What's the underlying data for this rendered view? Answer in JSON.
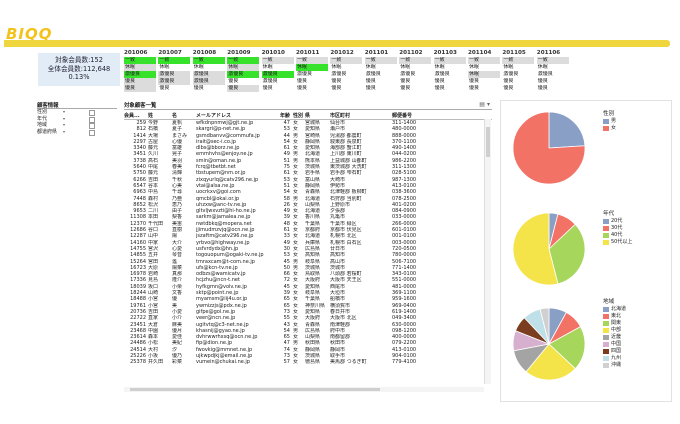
{
  "app": {
    "logo": "BIQQ"
  },
  "summary": {
    "line1": "対象会員数:152",
    "line2": "全体会員数:112,648",
    "line3": "0.13%"
  },
  "periods": [
    {
      "label": "201006",
      "cells": [
        [
          "一致",
          "green"
        ],
        [
          "休眠",
          "lgray"
        ],
        [
          "激優良",
          "green"
        ],
        [
          "優良",
          "lgray"
        ],
        [
          "優良",
          "lgray"
        ]
      ]
    },
    {
      "label": "201007",
      "cells": [
        [
          "一致",
          "green"
        ],
        [
          "休眠",
          "white"
        ],
        [
          "激優良",
          "lgray"
        ],
        [
          "激優良",
          "lgray"
        ],
        [
          "優良",
          "white"
        ]
      ]
    },
    {
      "label": "201008",
      "cells": [
        [
          "一致",
          "green"
        ],
        [
          "休眠",
          "white"
        ],
        [
          "激優良",
          "lgray"
        ],
        [
          "激優良",
          "lgray"
        ],
        [
          "優良",
          "white"
        ]
      ]
    },
    {
      "label": "201009",
      "cells": [
        [
          "一致",
          "green"
        ],
        [
          "休眠",
          "lgray"
        ],
        [
          "激優良",
          "green"
        ],
        [
          "優良",
          "white"
        ],
        [
          "優良",
          "lgray"
        ]
      ]
    },
    {
      "label": "201010",
      "cells": [
        [
          "一致",
          "lgray"
        ],
        [
          "休眠",
          "white"
        ],
        [
          "激優良",
          "green"
        ],
        [
          "激優良",
          "white"
        ],
        [
          "優良",
          "white"
        ]
      ]
    },
    {
      "label": "201011",
      "cells": [
        [
          "一致",
          "lgray"
        ],
        [
          "休眠",
          "green"
        ],
        [
          "激優良",
          "white"
        ],
        [
          "優良",
          "white"
        ],
        [
          "優良",
          "white"
        ]
      ]
    },
    {
      "label": "201012",
      "cells": [
        [
          "一致",
          "lgray"
        ],
        [
          "休眠",
          "white"
        ],
        [
          "激優良",
          "white"
        ],
        [
          "優良",
          "white"
        ],
        [
          "優良",
          "white"
        ]
      ]
    },
    {
      "label": "201101",
      "cells": [
        [
          "一致",
          "lgray"
        ],
        [
          "休眠",
          "white"
        ],
        [
          "激優良",
          "white"
        ],
        [
          "優良",
          "white"
        ],
        [
          "優良",
          "white"
        ]
      ]
    },
    {
      "label": "201102",
      "cells": [
        [
          "一致",
          "lgray"
        ],
        [
          "休眠",
          "white"
        ],
        [
          "激優良",
          "white"
        ],
        [
          "優良",
          "white"
        ],
        [
          "優良",
          "white"
        ]
      ]
    },
    {
      "label": "201103",
      "cells": [
        [
          "一致",
          "lgray"
        ],
        [
          "休眠",
          "white"
        ],
        [
          "激優良",
          "white"
        ],
        [
          "優良",
          "white"
        ],
        [
          "優良",
          "white"
        ]
      ]
    },
    {
      "label": "201104",
      "cells": [
        [
          "一致",
          "lgray"
        ],
        [
          "休眠",
          "white"
        ],
        [
          "休眠",
          "lgray"
        ],
        [
          "優良",
          "white"
        ],
        [
          "優良",
          "white"
        ]
      ]
    },
    {
      "label": "201105",
      "cells": [
        [
          "一致",
          "lgray"
        ],
        [
          "休眠",
          "white"
        ],
        [
          "激優良",
          "white"
        ],
        [
          "優良",
          "white"
        ],
        [
          "優良",
          "white"
        ]
      ]
    },
    {
      "label": "201106",
      "cells": [
        [
          "一致",
          "lgray"
        ],
        [
          "休眠",
          "white"
        ],
        [
          "激優良",
          "white"
        ],
        [
          "優良",
          "white"
        ],
        [
          "優良",
          "white"
        ]
      ]
    }
  ],
  "filter": {
    "title": "顧客情報",
    "rows": [
      "性別",
      "年代",
      "地域",
      "都道府県"
    ]
  },
  "table": {
    "title": "対象顧客一覧",
    "headers": [
      "会員...",
      "姓",
      "名",
      "メールアドレス",
      "年齢",
      "性別",
      "県",
      "市区町村",
      "郵便番号"
    ],
    "rows": [
      [
        "259",
        "今野",
        "夏帆",
        "wfkdnpnmwj@gjt.ne.jp",
        "47",
        "女",
        "宮城県",
        "仙台市",
        "311-1400"
      ],
      [
        "812",
        "石橋",
        "夏子",
        "skargri@p-net.ne.jp",
        "53",
        "女",
        "愛知県",
        "瀬戸市",
        "480-0000"
      ],
      [
        "1414",
        "大場",
        "まさみ",
        "gsmdbanvv@commufa.jp",
        "44",
        "男",
        "宮崎県",
        "児湯郡 都農町",
        "888-0000"
      ],
      [
        "2297",
        "古屋",
        "心優",
        "irait@sec-i.co.jp",
        "54",
        "女",
        "静岡県",
        "駿東郡 長泉町",
        "370-1100"
      ],
      [
        "3340",
        "藤元",
        "富雄",
        "dlbs@bborz.ne.jp",
        "61",
        "女",
        "愛知県",
        "海部郡 蟹江町",
        "490-1400"
      ],
      [
        "3451",
        "久川",
        "晃子",
        "emmhvhs@enjoy.ne.jp",
        "49",
        "男",
        "北海道",
        "上川郡 東川町",
        "044-0200"
      ],
      [
        "3738",
        "高石",
        "美羽",
        "smin@oman.ne.jp",
        "51",
        "男",
        "熊本県",
        "上益城郡 山都町",
        "986-2200"
      ],
      [
        "5640",
        "中尾",
        "春美",
        "fcrq@tbetbt.net",
        "75",
        "女",
        "茨城県",
        "東茨城郡 大洗町",
        "311-1300"
      ],
      [
        "5750",
        "藤元",
        "清輝",
        "tbstupem@nm.or.jp",
        "61",
        "女",
        "岩手県",
        "岩手郡 雫石町",
        "028-5100"
      ],
      [
        "6266",
        "吉田",
        "千秋",
        "zixqyurlq@catv296.ne.jp",
        "53",
        "女",
        "富山県",
        "大崎市",
        "987-1300"
      ],
      [
        "6547",
        "谷本",
        "心美",
        "vtai@alsa.ne.jp",
        "51",
        "女",
        "静岡県",
        "伊勢市",
        "413-0100"
      ],
      [
        "6963",
        "中島",
        "千尋",
        "uocrkxv@goi.com",
        "54",
        "女",
        "青森県",
        "北津軽郡 板柳町",
        "038-3600"
      ],
      [
        "7448",
        "森村",
        "乃亜",
        "qmcbl@okai.or.jp",
        "58",
        "男",
        "北海道",
        "石狩郡 当別町",
        "078-2500"
      ],
      [
        "8652",
        "松沢",
        "恵乃",
        "uhzxw@anc-tv.ne.jp",
        "26",
        "女",
        "山梨県",
        "上野原市",
        "401-0200"
      ],
      [
        "9653",
        "二川",
        "由子",
        "gltvljwxvzti@hi-ho.ne.jp",
        "49",
        "女",
        "北海道",
        "夕張郡",
        "084-0900"
      ],
      [
        "11308",
        "本田",
        "梨香",
        "sarkm@jamalea.ne.jp",
        "39",
        "女",
        "香川県",
        "丸亀市",
        "033-0000"
      ],
      [
        "12370",
        "千代田",
        "美宙",
        "nwtdbkq@mopera.net",
        "48",
        "女",
        "千葉県",
        "千葉市 緑区",
        "266-0000"
      ],
      [
        "12686",
        "谷口",
        "直樹",
        "jjimudmzvjq@ocn.ne.jp",
        "61",
        "女",
        "京都府",
        "京都市 伏見区",
        "601-0100"
      ],
      [
        "12287",
        "山中",
        "陽",
        "jszaftm@catv296.ne.jp",
        "33",
        "女",
        "北海道",
        "札幌市 北区",
        "001-0100"
      ],
      [
        "14160",
        "中家",
        "大介",
        "yrbvo@highway.ne.jp",
        "49",
        "女",
        "兵庫県",
        "札幌市 白石区",
        "003-0000"
      ],
      [
        "14755",
        "宮沢",
        "心愛",
        "usfvrdydx@hn.jp",
        "30",
        "女",
        "広島県",
        "廿日市",
        "720-0500"
      ],
      [
        "14855",
        "五井",
        "琴音",
        "togouopum@ogaki-tv.ne.jp",
        "53",
        "女",
        "高知県",
        "高知市",
        "780-0000"
      ],
      [
        "15264",
        "宮田",
        "遙",
        "tmraxcam@t-com.ne.jp",
        "45",
        "男",
        "岐阜県",
        "高山市",
        "506-7100"
      ],
      [
        "16723",
        "大原",
        "陽菜",
        "ufs@kcn-tv.ne.jp",
        "50",
        "男",
        "茨城県",
        "茨城市",
        "771-1400"
      ],
      [
        "16978",
        "岩崎",
        "真那",
        "odbzs@wamicatv.jp",
        "66",
        "女",
        "鳥取県",
        "八頭郡 若桜町",
        "343-0100"
      ],
      [
        "17336",
        "見島",
        "隆介",
        "hcjzhu@ncn-t.net",
        "72",
        "女",
        "大阪府",
        "大阪市 天王区",
        "551-0000"
      ],
      [
        "18039",
        "坂口",
        "小栗",
        "hyfkgmn@volv.ne.jp",
        "45",
        "女",
        "愛知県",
        "西尾市",
        "481-0000"
      ],
      [
        "18244",
        "山崎",
        "文香",
        "sktp@point.ne.jp",
        "39",
        "女",
        "岐阜県",
        "大垣市",
        "369-1100"
      ],
      [
        "18488",
        "小宮",
        "優",
        "myamsm@iij4u.or.jp",
        "65",
        "女",
        "千葉県",
        "船橋市",
        "959-1600"
      ],
      [
        "19761",
        "小宮",
        "美",
        "ywmizzjs@pdx.ne.jp",
        "65",
        "女",
        "神奈川県",
        "横須賀市",
        "969-0400"
      ],
      [
        "20736",
        "吉田",
        "小愛",
        "gifpe@gol.ne.jp",
        "73",
        "女",
        "愛知県",
        "春日井市",
        "619-1400"
      ],
      [
        "22722",
        "直家",
        "小介",
        "veer@ncn.ne.jp",
        "55",
        "女",
        "大阪府",
        "大阪市 北区",
        "049-3400"
      ],
      [
        "23451",
        "大倉",
        "麻美",
        "ugitvtq@c3-net.ne.jp",
        "43",
        "女",
        "青森県",
        "南津軽郡",
        "630-0000"
      ],
      [
        "23468",
        "中園",
        "優月",
        "khasnij@gyao.ne.jp",
        "54",
        "男",
        "広島県",
        "府中市",
        "098-1200"
      ],
      [
        "23614",
        "森本",
        "愛佳",
        "dvhrwwrhxsq@ocn.ne.jp",
        "65",
        "女",
        "山梨県",
        "南都留郡",
        "400-0000"
      ],
      [
        "24486",
        "小松",
        "美紀",
        "fip@dion.ne.jp",
        "47",
        "男",
        "秋田県",
        "秋田市",
        "079-2200"
      ],
      [
        "24514",
        "大村",
        "汐",
        "fwovkig@mmnet.ne.jp",
        "74",
        "女",
        "静岡県",
        "静岡市",
        "413-0100"
      ],
      [
        "25226",
        "小坂",
        "優乃",
        "ujkwpdjkj@email.ne.jp",
        "73",
        "女",
        "茨城県",
        "取手市",
        "904-0100"
      ],
      [
        "25378",
        "井久田",
        "彩菜",
        "vumein@chukai.ne.jp",
        "57",
        "女",
        "徳島県",
        "美馬郡 つるぎ町",
        "779-4100"
      ]
    ]
  },
  "pies": [
    {
      "title": "性別",
      "slices": [
        {
          "label": "男",
          "value": 24,
          "color": "#8a9fc6"
        },
        {
          "label": "女",
          "value": 76,
          "color": "#f27266"
        }
      ]
    },
    {
      "title": "年代",
      "slices": [
        {
          "label": "20代",
          "value": 4,
          "color": "#8a9fc6"
        },
        {
          "label": "30代",
          "value": 9,
          "color": "#f27266"
        },
        {
          "label": "40代",
          "value": 33,
          "color": "#a6d65c"
        },
        {
          "label": "50代以上",
          "value": 54,
          "color": "#f5e34a"
        }
      ]
    },
    {
      "title": "地域",
      "slices": [
        {
          "label": "北海道",
          "value": 8,
          "color": "#8a9fc6"
        },
        {
          "label": "東北",
          "value": 9,
          "color": "#f27266"
        },
        {
          "label": "関東",
          "value": 20,
          "color": "#a6d65c"
        },
        {
          "label": "中部",
          "value": 24,
          "color": "#f5e34a"
        },
        {
          "label": "近畿",
          "value": 11,
          "color": "#a5a4a4"
        },
        {
          "label": "中国",
          "value": 9,
          "color": "#d8b0cf"
        },
        {
          "label": "四国",
          "value": 7,
          "color": "#7a3d1f"
        },
        {
          "label": "九州",
          "value": 8,
          "color": "#bfe0e8"
        },
        {
          "label": "沖縄",
          "value": 4,
          "color": "#d0d0d0"
        }
      ]
    }
  ]
}
